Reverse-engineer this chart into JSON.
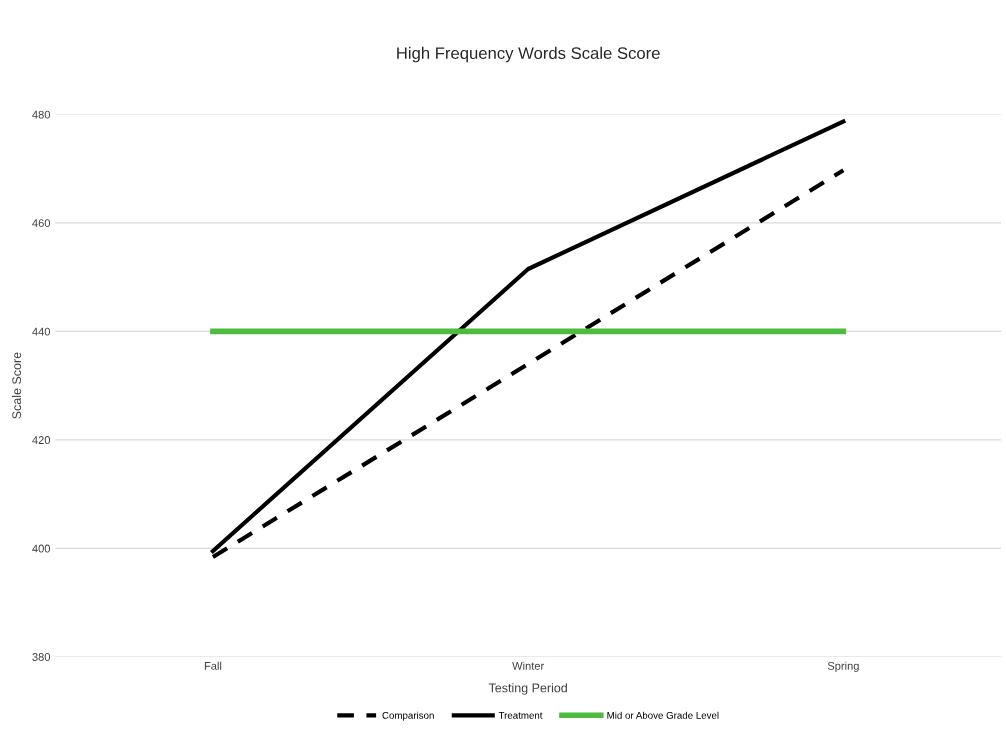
{
  "chart_data": {
    "type": "line",
    "title": "High Frequency Words Scale Score",
    "xlabel": "Testing Period",
    "ylabel": "Scale Score",
    "categories": [
      "Fall",
      "Winter",
      "Spring"
    ],
    "series": [
      {
        "name": "Comparison",
        "color": "#000000",
        "line_style": "dashed",
        "values": [
          398.4,
          434,
          469.7
        ]
      },
      {
        "name": "Treatment",
        "color": "#000000",
        "line_style": "solid",
        "values": [
          399.5,
          451.5,
          478.7
        ]
      },
      {
        "name": "Mid or Above Grade Level",
        "color": "#4cbb3f",
        "line_style": "solid",
        "values": [
          440,
          440,
          440
        ]
      }
    ],
    "ylim": [
      380,
      480
    ],
    "yticks": [
      380,
      400,
      420,
      440,
      460,
      480
    ],
    "grid": "y",
    "legend": "bottom",
    "marker": "none"
  }
}
